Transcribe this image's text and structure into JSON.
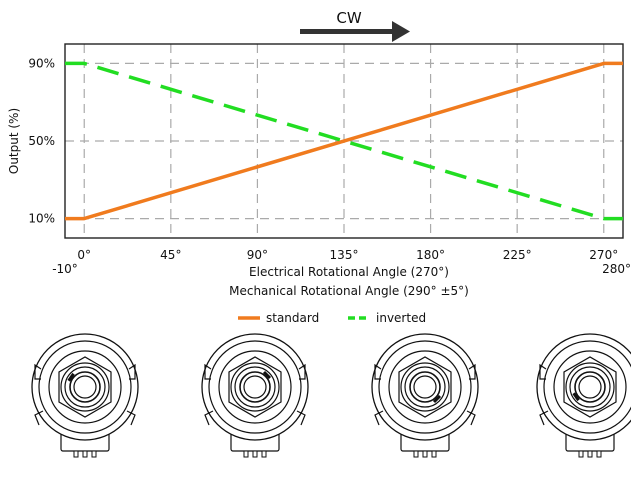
{
  "direction_indicator": {
    "label": "CW",
    "icon": "arrow-right-icon"
  },
  "chart_data": {
    "type": "line",
    "title": "",
    "xlabel": "Electrical Rotational Angle (270°)",
    "xlabel_secondary": "Mechanical Rotational Angle (290° ±5°)",
    "ylabel": "Output (%)",
    "xlim": [
      -10,
      280
    ],
    "ylim": [
      0,
      100
    ],
    "grid": true,
    "legend_position": "bottom-center",
    "x_ticks": [
      {
        "value": 0,
        "label": "0°"
      },
      {
        "value": 45,
        "label": "45°"
      },
      {
        "value": 90,
        "label": "90°"
      },
      {
        "value": 135,
        "label": "135°"
      },
      {
        "value": 180,
        "label": "180°"
      },
      {
        "value": 225,
        "label": "225°"
      },
      {
        "value": 270,
        "label": "270°"
      }
    ],
    "x_limit_labels": [
      {
        "value": -10,
        "label": "-10°"
      },
      {
        "value": 280,
        "label": "280°"
      }
    ],
    "y_ticks": [
      {
        "value": 10,
        "label": "10%"
      },
      {
        "value": 50,
        "label": "50%"
      },
      {
        "value": 90,
        "label": "90%"
      }
    ],
    "series": [
      {
        "name": "standard",
        "color": "#f07b1e",
        "style": "solid",
        "x": [
          -10,
          0,
          270,
          280
        ],
        "y": [
          10,
          10,
          90,
          90
        ]
      },
      {
        "name": "inverted",
        "color": "#22dd22",
        "style": "dashed",
        "x": [
          -10,
          0,
          270,
          280
        ],
        "y": [
          90,
          90,
          10,
          10
        ]
      }
    ]
  },
  "knob_illustrations": {
    "count": 4,
    "icon": "potentiometer-icon",
    "shaft_angles": [
      -10,
      90,
      180,
      280
    ]
  }
}
